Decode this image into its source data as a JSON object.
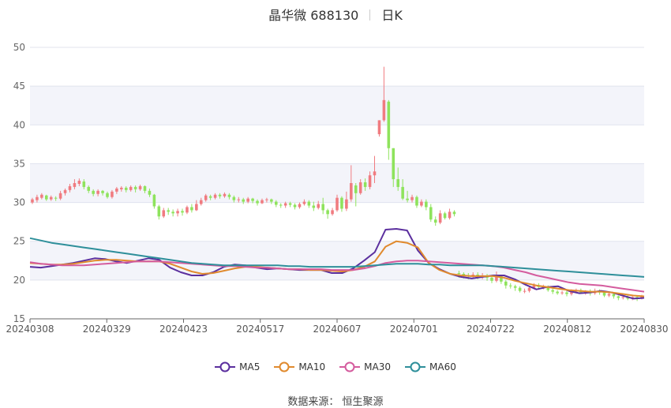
{
  "title": {
    "name": "晶华微 688130",
    "period": "日K"
  },
  "source": "数据来源： 恒生聚源",
  "chart_data": {
    "type": "candlestick",
    "ylim": [
      15,
      50
    ],
    "yticks": [
      15,
      20,
      25,
      30,
      35,
      40,
      45,
      50
    ],
    "xticks": [
      "20240308",
      "20240329",
      "20240423",
      "20240517",
      "20240607",
      "20240701",
      "20240722",
      "20240812",
      "20240830"
    ],
    "colors": {
      "up": "#f07b80",
      "down": "#8ee35c",
      "grid_band": "#f3f4fa"
    },
    "candles": [
      [
        30.0,
        30.4,
        29.8,
        30.6
      ],
      [
        30.3,
        30.7,
        30.0,
        31.0
      ],
      [
        30.6,
        31.0,
        30.4,
        31.2
      ],
      [
        30.9,
        30.4,
        30.2,
        31.0
      ],
      [
        30.4,
        30.7,
        30.2,
        30.9
      ],
      [
        30.6,
        30.5,
        30.2,
        30.8
      ],
      [
        30.5,
        31.2,
        30.3,
        31.5
      ],
      [
        31.2,
        31.6,
        30.9,
        31.8
      ],
      [
        31.6,
        32.1,
        31.3,
        32.4
      ],
      [
        32.0,
        32.5,
        31.7,
        33.0
      ],
      [
        32.4,
        32.8,
        32.1,
        33.1
      ],
      [
        32.7,
        32.0,
        31.7,
        33.0
      ],
      [
        32.0,
        31.5,
        31.2,
        32.2
      ],
      [
        31.5,
        31.1,
        30.8,
        31.7
      ],
      [
        31.1,
        31.5,
        30.8,
        31.7
      ],
      [
        31.5,
        31.2,
        30.9,
        31.6
      ],
      [
        31.2,
        30.7,
        30.5,
        31.4
      ],
      [
        30.7,
        31.4,
        30.5,
        31.6
      ],
      [
        31.4,
        31.8,
        31.1,
        32.0
      ],
      [
        31.7,
        31.9,
        31.4,
        32.1
      ],
      [
        31.9,
        31.6,
        31.3,
        32.1
      ],
      [
        31.6,
        32.0,
        31.4,
        32.2
      ],
      [
        32.0,
        31.7,
        31.3,
        32.2
      ],
      [
        31.7,
        32.1,
        31.5,
        32.3
      ],
      [
        32.1,
        31.5,
        31.2,
        32.2
      ],
      [
        31.5,
        31.0,
        30.7,
        31.8
      ],
      [
        31.0,
        29.5,
        29.2,
        31.1
      ],
      [
        29.5,
        28.2,
        27.8,
        29.7
      ],
      [
        28.2,
        29.0,
        28.0,
        29.3
      ],
      [
        29.0,
        28.8,
        28.4,
        29.3
      ],
      [
        28.8,
        28.6,
        28.2,
        29.1
      ],
      [
        28.6,
        28.9,
        28.2,
        29.2
      ],
      [
        28.9,
        28.7,
        28.3,
        29.2
      ],
      [
        28.7,
        29.4,
        28.5,
        29.6
      ],
      [
        29.4,
        29.0,
        28.7,
        29.8
      ],
      [
        29.0,
        29.8,
        28.9,
        30.3
      ],
      [
        29.8,
        30.3,
        29.6,
        30.6
      ],
      [
        30.3,
        30.9,
        30.1,
        31.1
      ],
      [
        30.8,
        30.6,
        30.3,
        31.0
      ],
      [
        30.6,
        31.0,
        30.4,
        31.2
      ],
      [
        31.0,
        30.8,
        30.5,
        31.2
      ],
      [
        30.8,
        31.1,
        30.6,
        31.3
      ],
      [
        31.0,
        30.7,
        30.4,
        31.2
      ],
      [
        30.7,
        30.3,
        30.0,
        30.9
      ],
      [
        30.3,
        30.4,
        30.0,
        30.7
      ],
      [
        30.4,
        30.1,
        29.8,
        30.6
      ],
      [
        30.1,
        30.5,
        29.9,
        30.7
      ],
      [
        30.5,
        30.2,
        29.9,
        30.6
      ],
      [
        30.2,
        29.9,
        29.6,
        30.4
      ],
      [
        29.9,
        30.3,
        29.8,
        30.5
      ],
      [
        30.3,
        30.4,
        30.0,
        30.6
      ],
      [
        30.4,
        30.1,
        29.8,
        30.5
      ],
      [
        30.1,
        29.7,
        29.4,
        30.3
      ],
      [
        29.7,
        29.6,
        29.3,
        29.9
      ],
      [
        29.6,
        29.9,
        29.3,
        30.1
      ],
      [
        29.9,
        29.7,
        29.4,
        30.1
      ],
      [
        29.7,
        29.4,
        29.1,
        29.9
      ],
      [
        29.4,
        29.8,
        29.2,
        30.0
      ],
      [
        29.8,
        30.1,
        29.6,
        30.4
      ],
      [
        30.1,
        29.6,
        29.3,
        30.3
      ],
      [
        29.6,
        29.3,
        28.9,
        30.1
      ],
      [
        29.3,
        29.8,
        29.1,
        30.2
      ],
      [
        29.8,
        29.0,
        28.5,
        30.6
      ],
      [
        29.0,
        28.5,
        27.9,
        29.2
      ],
      [
        28.5,
        29.0,
        28.3,
        29.3
      ],
      [
        29.0,
        30.6,
        28.8,
        31.0
      ],
      [
        30.6,
        29.2,
        28.8,
        30.8
      ],
      [
        29.2,
        30.4,
        28.9,
        31.4
      ],
      [
        30.4,
        32.5,
        30.1,
        34.8
      ],
      [
        32.2,
        31.2,
        29.5,
        32.5
      ],
      [
        31.2,
        32.6,
        31.0,
        33.0
      ],
      [
        32.6,
        32.0,
        31.5,
        33.1
      ],
      [
        32.0,
        33.5,
        31.7,
        34.0
      ],
      [
        33.5,
        34.0,
        32.5,
        36.0
      ],
      [
        38.8,
        40.6,
        38.5,
        40.6
      ],
      [
        40.6,
        43.2,
        40.4,
        47.5
      ],
      [
        43.0,
        37.0,
        35.5,
        43.2
      ],
      [
        37.0,
        33.0,
        32.0,
        37.0
      ],
      [
        33.0,
        32.0,
        31.5,
        34.5
      ],
      [
        32.0,
        30.5,
        30.3,
        33.0
      ],
      [
        30.5,
        30.3,
        30.0,
        31.5
      ],
      [
        30.3,
        30.7,
        30.0,
        31.0
      ],
      [
        30.7,
        29.6,
        29.3,
        30.9
      ],
      [
        29.6,
        30.1,
        29.4,
        30.4
      ],
      [
        30.1,
        29.4,
        29.0,
        30.4
      ],
      [
        29.4,
        27.8,
        27.5,
        29.8
      ],
      [
        27.8,
        27.4,
        27.0,
        28.2
      ],
      [
        27.4,
        28.6,
        27.2,
        29.0
      ],
      [
        28.6,
        28.0,
        27.8,
        28.8
      ],
      [
        28.0,
        28.8,
        27.8,
        29.2
      ],
      [
        28.8,
        28.5,
        28.2,
        29.0
      ],
      [
        20.9,
        20.8,
        20.3,
        21.2
      ],
      [
        20.8,
        20.6,
        20.2,
        21.0
      ],
      [
        20.6,
        20.5,
        20.1,
        20.9
      ],
      [
        20.5,
        20.7,
        20.2,
        21.0
      ],
      [
        20.7,
        20.5,
        20.1,
        21.0
      ],
      [
        20.5,
        20.6,
        20.1,
        20.9
      ],
      [
        20.6,
        20.3,
        19.9,
        20.8
      ],
      [
        20.3,
        19.9,
        19.6,
        20.5
      ],
      [
        19.9,
        20.5,
        19.7,
        21.1
      ],
      [
        20.5,
        19.8,
        19.5,
        20.7
      ],
      [
        19.8,
        19.3,
        18.9,
        20.0
      ],
      [
        19.3,
        19.2,
        18.9,
        19.6
      ],
      [
        19.2,
        19.0,
        18.6,
        19.4
      ],
      [
        19.0,
        18.6,
        18.4,
        19.2
      ],
      [
        18.6,
        18.6,
        18.3,
        18.9
      ],
      [
        18.6,
        19.0,
        18.4,
        19.2
      ],
      [
        19.0,
        19.3,
        18.8,
        19.6
      ],
      [
        19.3,
        19.1,
        18.8,
        19.6
      ],
      [
        19.1,
        19.1,
        18.8,
        19.4
      ],
      [
        19.1,
        18.7,
        18.5,
        19.3
      ],
      [
        18.7,
        18.5,
        18.2,
        18.9
      ],
      [
        18.5,
        18.3,
        18.1,
        18.7
      ],
      [
        18.3,
        18.4,
        18.1,
        18.6
      ],
      [
        18.4,
        18.2,
        17.9,
        18.6
      ],
      [
        18.2,
        18.5,
        18.0,
        18.8
      ],
      [
        18.5,
        18.7,
        18.3,
        18.9
      ],
      [
        18.7,
        18.4,
        18.2,
        18.9
      ],
      [
        18.4,
        18.5,
        18.1,
        18.7
      ],
      [
        18.5,
        18.3,
        18.0,
        18.8
      ],
      [
        18.3,
        18.6,
        18.1,
        18.9
      ],
      [
        18.6,
        18.4,
        18.1,
        18.8
      ],
      [
        18.4,
        18.0,
        17.8,
        18.6
      ],
      [
        18.0,
        18.2,
        17.8,
        18.4
      ],
      [
        18.2,
        17.9,
        17.6,
        18.3
      ],
      [
        17.9,
        17.7,
        17.4,
        18.0
      ],
      [
        17.7,
        17.8,
        17.5,
        18.0
      ],
      [
        17.8,
        17.6,
        17.4,
        18.0
      ],
      [
        17.6,
        17.8,
        17.4,
        18.0
      ],
      [
        17.8,
        17.6,
        17.3,
        17.9
      ],
      [
        17.6,
        17.9,
        17.5,
        18.1
      ]
    ],
    "series": [
      {
        "name": "MA5",
        "color": "#5b2f9e",
        "values": [
          21.7,
          21.6,
          21.8,
          22.0,
          22.2,
          22.5,
          22.8,
          22.7,
          22.4,
          22.2,
          22.5,
          22.8,
          22.6,
          21.6,
          21.0,
          20.6,
          20.6,
          21.0,
          21.7,
          22.0,
          21.9,
          21.6,
          21.4,
          21.5,
          21.4,
          21.3,
          21.3,
          21.3,
          20.9,
          20.9,
          21.5,
          22.5,
          23.6,
          26.5,
          26.6,
          26.4,
          23.8,
          22.2,
          21.4,
          20.8,
          20.4,
          20.2,
          20.4,
          20.6,
          20.6,
          20.1,
          19.4,
          18.8,
          19.1,
          19.2,
          18.6,
          18.3,
          18.4,
          18.6,
          18.4,
          18.0,
          17.6,
          17.7
        ]
      },
      {
        "name": "MA10",
        "color": "#e08a2e",
        "values": [
          22.2,
          22.1,
          22.0,
          22.0,
          22.1,
          22.3,
          22.5,
          22.6,
          22.6,
          22.5,
          22.4,
          22.4,
          22.4,
          22.1,
          21.6,
          21.1,
          20.8,
          20.9,
          21.2,
          21.5,
          21.7,
          21.7,
          21.6,
          21.5,
          21.4,
          21.4,
          21.3,
          21.3,
          21.2,
          21.1,
          21.3,
          21.7,
          22.4,
          24.3,
          25.0,
          24.8,
          24.2,
          22.2,
          21.3,
          20.8,
          20.6,
          20.5,
          20.5,
          20.5,
          20.3,
          19.9,
          19.6,
          19.3,
          19.1,
          18.9,
          18.7,
          18.6,
          18.5,
          18.5,
          18.4,
          18.2,
          18.0,
          17.9
        ]
      },
      {
        "name": "MA30",
        "color": "#d45c9e",
        "values": [
          22.3,
          22.1,
          22.0,
          21.9,
          21.9,
          21.9,
          22.0,
          22.1,
          22.2,
          22.3,
          22.4,
          22.4,
          22.4,
          22.3,
          22.2,
          22.1,
          22.0,
          21.9,
          21.8,
          21.8,
          21.7,
          21.6,
          21.6,
          21.5,
          21.4,
          21.4,
          21.4,
          21.4,
          21.3,
          21.3,
          21.3,
          21.5,
          21.8,
          22.2,
          22.4,
          22.5,
          22.5,
          22.4,
          22.3,
          22.2,
          22.1,
          22.0,
          21.9,
          21.8,
          21.6,
          21.3,
          21.0,
          20.6,
          20.3,
          20.0,
          19.7,
          19.5,
          19.4,
          19.3,
          19.1,
          18.9,
          18.7,
          18.5
        ]
      },
      {
        "name": "MA60",
        "color": "#2e8f9a",
        "values": [
          25.4,
          25.1,
          24.8,
          24.6,
          24.4,
          24.2,
          24.0,
          23.8,
          23.6,
          23.4,
          23.2,
          23.0,
          22.8,
          22.6,
          22.4,
          22.2,
          22.1,
          22.0,
          21.9,
          21.9,
          21.9,
          21.9,
          21.9,
          21.9,
          21.8,
          21.8,
          21.7,
          21.7,
          21.7,
          21.7,
          21.7,
          21.8,
          21.9,
          22.0,
          22.1,
          22.1,
          22.1,
          22.0,
          22.0,
          21.9,
          21.9,
          21.9,
          21.9,
          21.8,
          21.7,
          21.6,
          21.5,
          21.4,
          21.3,
          21.2,
          21.1,
          21.0,
          20.9,
          20.8,
          20.7,
          20.6,
          20.5,
          20.4
        ]
      }
    ]
  }
}
